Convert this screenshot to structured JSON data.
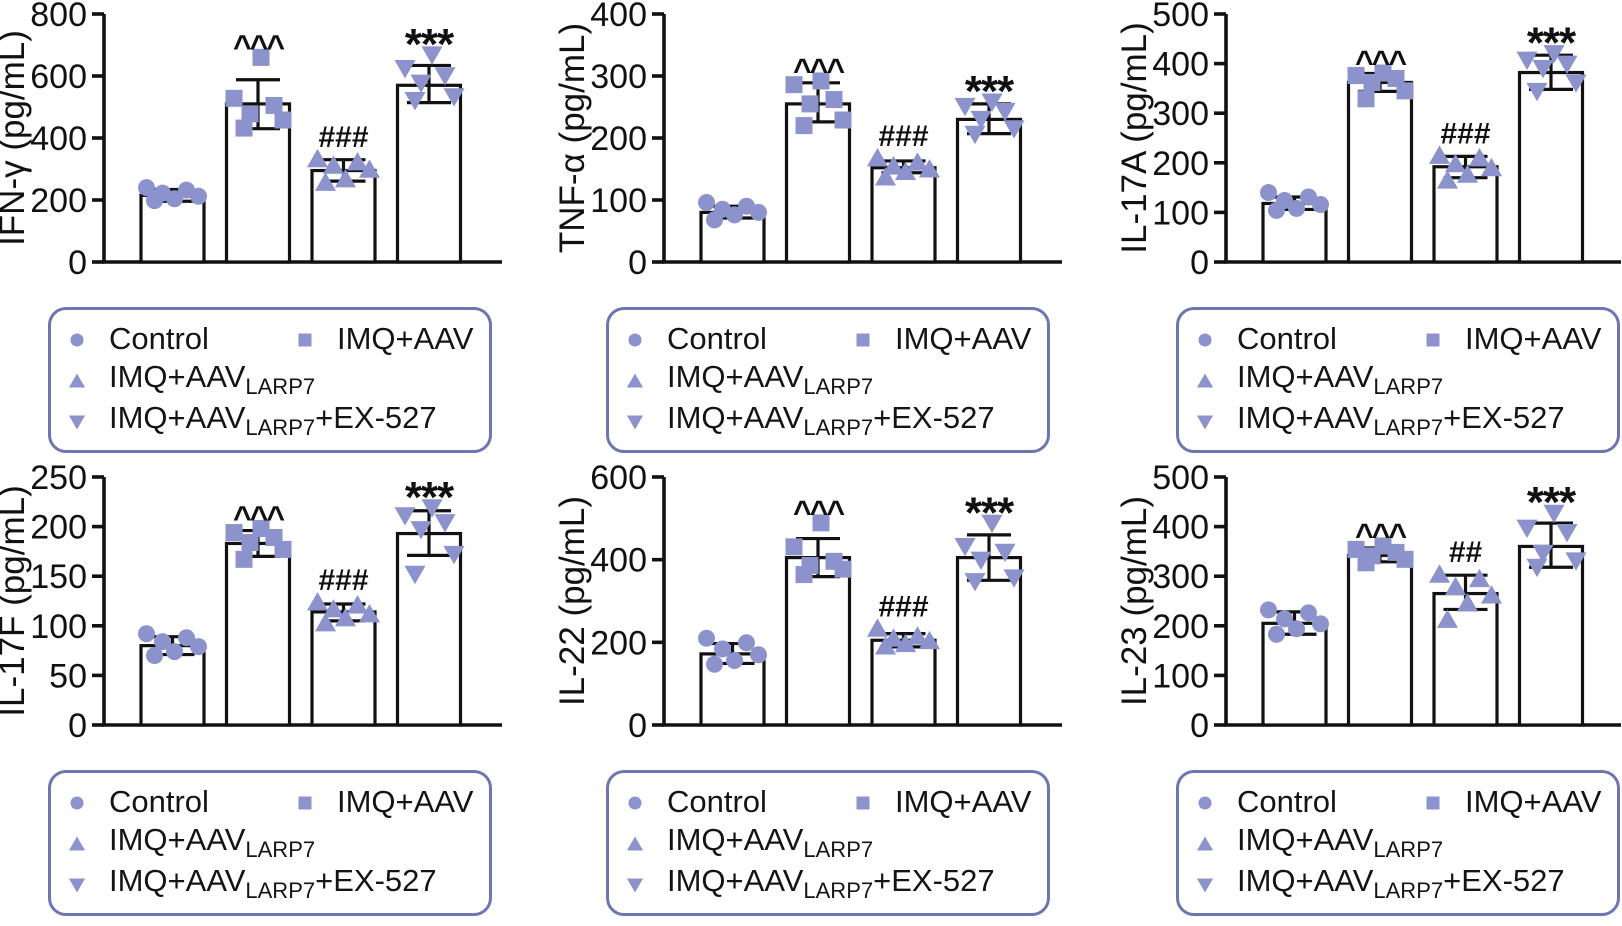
{
  "figure": {
    "marker_color": "#8b92cc",
    "legend_border_color": "#6e76b2",
    "bar_fill": "#ffffff",
    "axis_color": "#111111",
    "n_points_per_group": 6
  },
  "legend": {
    "entries": [
      {
        "shape": "circle",
        "name": "control",
        "parts": [
          {
            "t": "Control"
          }
        ]
      },
      {
        "shape": "square",
        "name": "imq-aav",
        "parts": [
          {
            "t": "IMQ+AAV"
          }
        ]
      },
      {
        "shape": "triangle-up",
        "name": "imq-aav-larp7",
        "parts": [
          {
            "t": "IMQ+AAV"
          },
          {
            "t": "LARP7",
            "sub": true
          }
        ]
      },
      {
        "shape": "triangle-down",
        "name": "imq-aav-larp7-ex527",
        "parts": [
          {
            "t": "IMQ+AAV"
          },
          {
            "t": "LARP7",
            "sub": true
          },
          {
            "t": "+EX-527"
          }
        ]
      }
    ],
    "rows": [
      [
        0,
        1
      ],
      [
        2
      ],
      [
        3
      ]
    ]
  },
  "chart_data": [
    {
      "type": "bar",
      "ylabel": "IFN-γ (pg/mL)",
      "ylim": [
        0,
        800
      ],
      "yticks": [
        0,
        200,
        400,
        600,
        800
      ],
      "categories": [
        "Control",
        "IMQ+AAV",
        "IMQ+AAV_LARP7",
        "IMQ+AAV_LARP7+EX-527"
      ],
      "markers": [
        "circle",
        "square",
        "triangle-up",
        "triangle-down"
      ],
      "bars": [
        {
          "mean": 215,
          "err_low": 196,
          "err_high": 234,
          "sig": "",
          "points": [
            240,
            232,
            222,
            212,
            204,
            198
          ]
        },
        {
          "mean": 510,
          "err_low": 430,
          "err_high": 588,
          "sig": "^^^",
          "points": [
            660,
            528,
            505,
            478,
            458,
            432
          ]
        },
        {
          "mean": 295,
          "err_low": 261,
          "err_high": 330,
          "sig": "###",
          "points": [
            333,
            323,
            312,
            299,
            268,
            257
          ]
        },
        {
          "mean": 570,
          "err_low": 514,
          "err_high": 634,
          "sig": "***",
          "points": [
            668,
            624,
            601,
            577,
            533,
            521
          ]
        }
      ]
    },
    {
      "type": "bar",
      "ylabel": "TNF-α (pg/mL)",
      "ylim": [
        0,
        400
      ],
      "yticks": [
        0,
        100,
        200,
        300,
        400
      ],
      "categories": [
        "Control",
        "IMQ+AAV",
        "IMQ+AAV_LARP7",
        "IMQ+AAV_LARP7+EX-527"
      ],
      "markers": [
        "circle",
        "square",
        "triangle-up",
        "triangle-down"
      ],
      "bars": [
        {
          "mean": 80,
          "err_low": 71,
          "err_high": 90,
          "sig": "",
          "points": [
            96,
            90,
            85,
            80,
            76,
            68
          ]
        },
        {
          "mean": 255,
          "err_low": 226,
          "err_high": 289,
          "sig": "^^^",
          "points": [
            292,
            286,
            262,
            255,
            229,
            220
          ]
        },
        {
          "mean": 152,
          "err_low": 144,
          "err_high": 163,
          "sig": "###",
          "points": [
            168,
            161,
            155,
            150,
            146,
            137
          ]
        },
        {
          "mean": 230,
          "err_low": 207,
          "err_high": 255,
          "sig": "***",
          "points": [
            258,
            251,
            243,
            230,
            215,
            206
          ]
        }
      ]
    },
    {
      "type": "bar",
      "ylabel": "IL-17A (pg/mL)",
      "ylim": [
        0,
        500
      ],
      "yticks": [
        0,
        100,
        200,
        300,
        400,
        500
      ],
      "categories": [
        "Control",
        "IMQ+AAV",
        "IMQ+AAV_LARP7",
        "IMQ+AAV_LARP7+EX-527"
      ],
      "markers": [
        "circle",
        "square",
        "triangle-up",
        "triangle-down"
      ],
      "bars": [
        {
          "mean": 118,
          "err_low": 106,
          "err_high": 131,
          "sig": "",
          "points": [
            140,
            131,
            124,
            116,
            108,
            104
          ]
        },
        {
          "mean": 362,
          "err_low": 344,
          "err_high": 380,
          "sig": "^^^",
          "points": [
            381,
            376,
            370,
            362,
            345,
            329
          ]
        },
        {
          "mean": 192,
          "err_low": 170,
          "err_high": 213,
          "sig": "###",
          "points": [
            215,
            210,
            198,
            190,
            177,
            165
          ]
        },
        {
          "mean": 382,
          "err_low": 348,
          "err_high": 417,
          "sig": "***",
          "points": [
            420,
            407,
            399,
            390,
            361,
            344
          ]
        }
      ]
    },
    {
      "type": "bar",
      "ylabel": "IL-17F (pg/mL)",
      "ylim": [
        0,
        250
      ],
      "yticks": [
        0,
        50,
        100,
        150,
        200,
        250
      ],
      "categories": [
        "Control",
        "IMQ+AAV",
        "IMQ+AAV_LARP7",
        "IMQ+AAV_LARP7+EX-527"
      ],
      "markers": [
        "circle",
        "square",
        "triangle-up",
        "triangle-down"
      ],
      "bars": [
        {
          "mean": 80,
          "err_low": 71,
          "err_high": 89,
          "sig": "",
          "points": [
            92,
            88,
            84,
            79,
            74,
            70
          ]
        },
        {
          "mean": 183,
          "err_low": 170,
          "err_high": 196,
          "sig": "^^^",
          "points": [
            198,
            194,
            189,
            184,
            177,
            167
          ]
        },
        {
          "mean": 114,
          "err_low": 105,
          "err_high": 122,
          "sig": "###",
          "points": [
            124,
            121,
            117,
            112,
            108,
            103
          ]
        },
        {
          "mean": 193,
          "err_low": 171,
          "err_high": 216,
          "sig": "***",
          "points": [
            219,
            211,
            204,
            197,
            172,
            152
          ]
        }
      ]
    },
    {
      "type": "bar",
      "ylabel": "IL-22 (pg/mL)",
      "ylim": [
        0,
        600
      ],
      "yticks": [
        0,
        200,
        400,
        600
      ],
      "categories": [
        "Control",
        "IMQ+AAV",
        "IMQ+AAV_LARP7",
        "IMQ+AAV_LARP7+EX-527"
      ],
      "markers": [
        "circle",
        "square",
        "triangle-up",
        "triangle-down"
      ],
      "bars": [
        {
          "mean": 172,
          "err_low": 149,
          "err_high": 197,
          "sig": "",
          "points": [
            210,
            199,
            184,
            170,
            156,
            147
          ]
        },
        {
          "mean": 405,
          "err_low": 359,
          "err_high": 451,
          "sig": "^^^",
          "points": [
            489,
            431,
            396,
            386,
            377,
            364
          ]
        },
        {
          "mean": 205,
          "err_low": 189,
          "err_high": 221,
          "sig": "###",
          "points": [
            234,
            215,
            210,
            204,
            197,
            191
          ]
        },
        {
          "mean": 405,
          "err_low": 350,
          "err_high": 460,
          "sig": "***",
          "points": [
            488,
            432,
            418,
            399,
            356,
            347
          ]
        }
      ]
    },
    {
      "type": "bar",
      "ylabel": "IL-23 (pg/mL)",
      "ylim": [
        0,
        500
      ],
      "yticks": [
        0,
        100,
        200,
        300,
        400,
        500
      ],
      "categories": [
        "Control",
        "IMQ+AAV",
        "IMQ+AAV_LARP7",
        "IMQ+AAV_LARP7+EX-527"
      ],
      "markers": [
        "circle",
        "square",
        "triangle-up",
        "triangle-down"
      ],
      "bars": [
        {
          "mean": 205,
          "err_low": 183,
          "err_high": 228,
          "sig": "",
          "points": [
            232,
            226,
            214,
            204,
            194,
            183
          ]
        },
        {
          "mean": 342,
          "err_low": 329,
          "err_high": 357,
          "sig": "^^^",
          "points": [
            361,
            354,
            348,
            341,
            334,
            327
          ]
        },
        {
          "mean": 265,
          "err_low": 233,
          "err_high": 302,
          "sig": "##",
          "points": [
            304,
            295,
            279,
            262,
            246,
            213
          ]
        },
        {
          "mean": 360,
          "err_low": 318,
          "err_high": 407,
          "sig": "***",
          "points": [
            427,
            397,
            388,
            346,
            331,
            318
          ]
        }
      ]
    }
  ]
}
